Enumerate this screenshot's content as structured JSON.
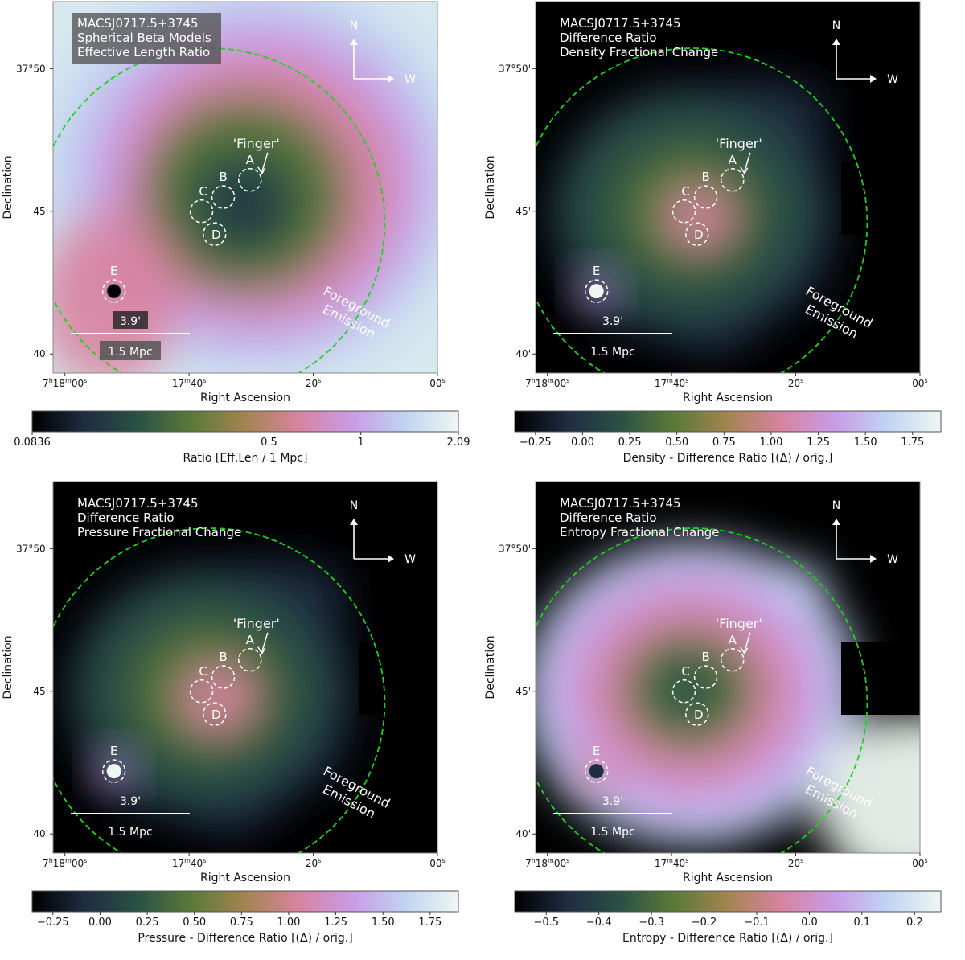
{
  "colors": {
    "circle": "#1ed21e",
    "region": "#ffffff",
    "colormap": [
      "#000000",
      "#1f2c42",
      "#2a5245",
      "#5b7a38",
      "#a3844f",
      "#d883a0",
      "#c99be6",
      "#c0d4f2",
      "#eef7f1"
    ]
  },
  "common": {
    "xlabel": "Right Ascension",
    "ylabel": "Declination",
    "xticks": [
      {
        "ra_s": 1080,
        "label": "7h18m00s"
      },
      {
        "ra_s": 1060,
        "label": "17m40s"
      },
      {
        "ra_s": 1040,
        "label": "20s"
      },
      {
        "ra_s": 1020,
        "label": "00s"
      }
    ],
    "yticks": [
      {
        "dec_arcmin": 50,
        "label": "37°50'"
      },
      {
        "dec_arcmin": 45,
        "label": "45'"
      },
      {
        "dec_arcmin": 40,
        "label": "40'"
      }
    ],
    "compass": {
      "north": "N",
      "west": "W"
    },
    "scalebar": {
      "angle": "3.9'",
      "length": "1.5 Mpc"
    },
    "finger_label": "'Finger'",
    "foreground_label": [
      "Foreground",
      "Emission"
    ],
    "regions": [
      {
        "label": "A",
        "ra_s": 1050.2,
        "dec_arcmin": 46.1
      },
      {
        "label": "B",
        "ra_s": 1054.5,
        "dec_arcmin": 45.5
      },
      {
        "label": "C",
        "ra_s": 1058.0,
        "dec_arcmin": 45.0
      },
      {
        "label": "D",
        "ra_s": 1055.9,
        "dec_arcmin": 44.2
      },
      {
        "label": "E",
        "ra_s": 1072.1,
        "dec_arcmin": 42.2
      }
    ]
  },
  "chart_data": [
    {
      "type": "heatmap",
      "title": [
        "MACSJ0717.5+3745",
        "Spherical Beta Models",
        "Effective Length Ratio"
      ],
      "xlabel": "Right Ascension",
      "ylabel": "Declination",
      "colorbar_label": "Ratio [Eff.Len / 1 Mpc]",
      "colorbar_ticks": [
        "0.0836",
        "0.5",
        "1",
        "2.09"
      ],
      "colorbar_tick_positions": [
        0.0836,
        0.5,
        1,
        2.09
      ],
      "colorbar_range": [
        0.0836,
        2.09
      ],
      "colorbar_scale": "log"
    },
    {
      "type": "heatmap",
      "title": [
        "MACSJ0717.5+3745",
        "Difference Ratio",
        "Density Fractional Change"
      ],
      "xlabel": "Right Ascension",
      "ylabel": "Declination",
      "colorbar_label": "Density - Difference Ratio [(Δ) / orig.]",
      "colorbar_ticks": [
        "−0.25",
        "0.00",
        "0.25",
        "0.50",
        "0.75",
        "1.00",
        "1.25",
        "1.50",
        "1.75"
      ],
      "colorbar_tick_positions": [
        -0.25,
        0,
        0.25,
        0.5,
        0.75,
        1.0,
        1.25,
        1.5,
        1.75
      ],
      "colorbar_range": [
        -0.36,
        1.9
      ],
      "colorbar_scale": "linear"
    },
    {
      "type": "heatmap",
      "title": [
        "MACSJ0717.5+3745",
        "Difference Ratio",
        "Pressure Fractional Change"
      ],
      "xlabel": "Right Ascension",
      "ylabel": "Declination",
      "colorbar_label": "Pressure - Difference Ratio [(Δ) / orig.]",
      "colorbar_ticks": [
        "−0.25",
        "0.00",
        "0.25",
        "0.50",
        "0.75",
        "1.00",
        "1.25",
        "1.50",
        "1.75"
      ],
      "colorbar_tick_positions": [
        -0.25,
        0,
        0.25,
        0.5,
        0.75,
        1.0,
        1.25,
        1.5,
        1.75
      ],
      "colorbar_range": [
        -0.36,
        1.9
      ],
      "colorbar_scale": "linear"
    },
    {
      "type": "heatmap",
      "title": [
        "MACSJ0717.5+3745",
        "Difference Ratio",
        "Entropy Fractional Change"
      ],
      "xlabel": "Right Ascension",
      "ylabel": "Declination",
      "colorbar_label": "Entropy - Difference Ratio [(Δ) / orig.]",
      "colorbar_ticks": [
        "−0.5",
        "−0.4",
        "−0.3",
        "−0.2",
        "−0.1",
        "0.0",
        "0.1",
        "0.2"
      ],
      "colorbar_tick_positions": [
        -0.5,
        -0.4,
        -0.3,
        -0.2,
        -0.1,
        0.0,
        0.1,
        0.2
      ],
      "colorbar_range": [
        -0.56,
        0.25
      ],
      "colorbar_scale": "linear"
    }
  ]
}
